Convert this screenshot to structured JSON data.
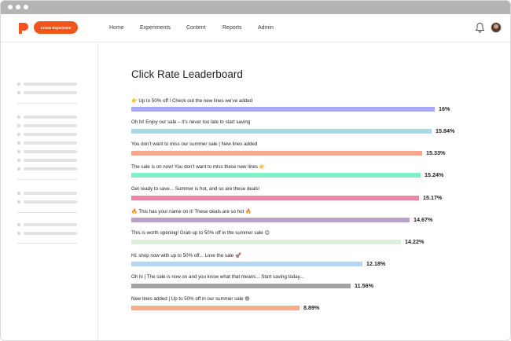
{
  "window": {
    "titlebar_color": "#b4b4b4"
  },
  "nav": {
    "create_button": "Create Experiment",
    "items": [
      "Home",
      "Experiments",
      "Content",
      "Reports",
      "Admin"
    ],
    "brand_color": "#f2551a",
    "icons": {
      "logo": "brand-logo-icon",
      "notifications": "bell-icon",
      "user": "avatar"
    }
  },
  "main": {
    "title": "Click Rate Leaderboard"
  },
  "leaderboard": [
    {
      "label": "👉 Up to 50% off ! Check out the new lines we’ve added",
      "value": "16%",
      "rate": 16.0,
      "color": "#aaa9f2"
    },
    {
      "label": "Oh hi! Enjoy our sale – it’s never too late to start saving",
      "value": "15.84%",
      "rate": 15.84,
      "color": "#a9d9e3"
    },
    {
      "label": "You don’t want to miss our summer sale | New lines added",
      "value": "15.33%",
      "rate": 15.33,
      "color": "#f3a98a"
    },
    {
      "label": "The sale is on now! You don’t want to miss these new lines 👉",
      "value": "15.24%",
      "rate": 15.24,
      "color": "#7ff0c8"
    },
    {
      "label": "Get ready to save... Summer is hot, and so are these deals!",
      "value": "15.17%",
      "rate": 15.17,
      "color": "#ee86a8"
    },
    {
      "label": "🔥 This has your name on it! These deals are so hot 🔥",
      "value": "14.67%",
      "rate": 14.67,
      "color": "#bca0cc"
    },
    {
      "label": "This is worth opening! Grab up to 50% off in the summer sale 😉",
      "value": "14.22%",
      "rate": 14.22,
      "color": "#deeedd"
    },
    {
      "label": "Hi: shop now with up to 50% off... Love the sale 🚀",
      "value": "12.18%",
      "rate": 12.18,
      "color": "#b6d5ee"
    },
    {
      "label": "Oh hi | The sale is now on and you know what that means... Start saving today...",
      "value": "11.56%",
      "rate": 11.56,
      "color": "#a3a3a3"
    },
    {
      "label": "New lines added | Up to 50% off in our summer sale 😄",
      "value": "8.89%",
      "rate": 8.89,
      "color": "#f4ae8e"
    }
  ]
}
